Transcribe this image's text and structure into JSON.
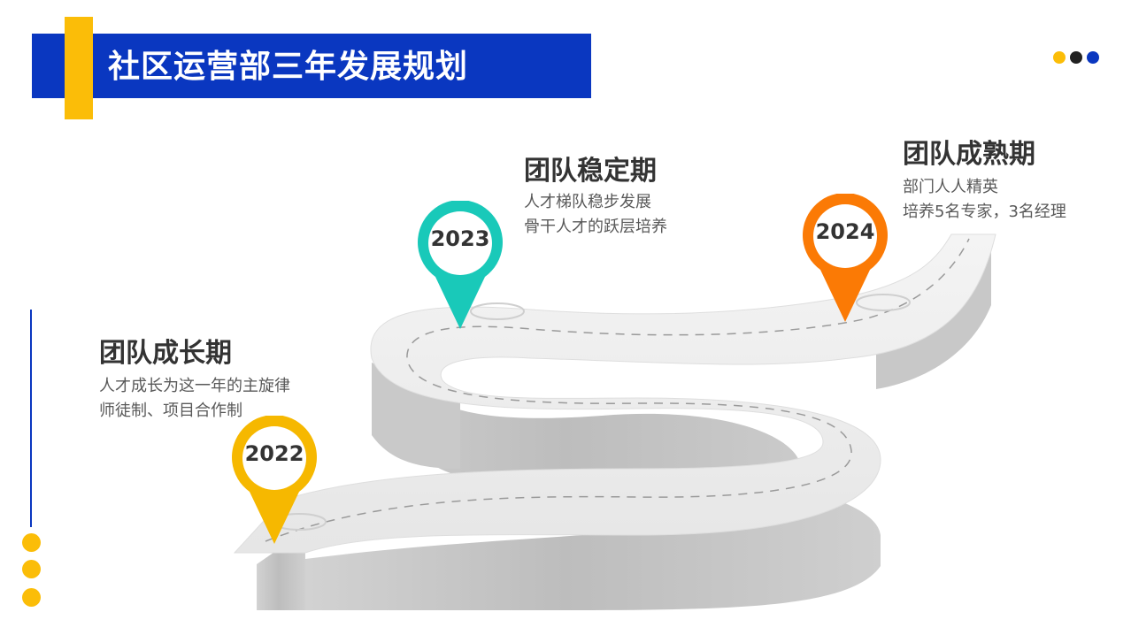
{
  "header": {
    "title": "社区运营部三年发展规划"
  },
  "colors": {
    "brand_blue": "#0a37c0",
    "accent_yellow": "#fbbd08",
    "dot_dark": "#222222",
    "pin_2022": "#f6b800",
    "pin_2023": "#19c9b9",
    "pin_2024": "#fb7a05"
  },
  "stages": [
    {
      "year": "2022",
      "title": "团队成长期",
      "desc": [
        "人才成长为这一年的主旋律",
        "师徒制、项目合作制"
      ]
    },
    {
      "year": "2023",
      "title": "团队稳定期",
      "desc": [
        "人才梯队稳步发展",
        "骨干人才的跃层培养"
      ]
    },
    {
      "year": "2024",
      "title": "团队成熟期",
      "desc": [
        "部门人人精英",
        "培养5名专家，3名经理"
      ]
    }
  ]
}
